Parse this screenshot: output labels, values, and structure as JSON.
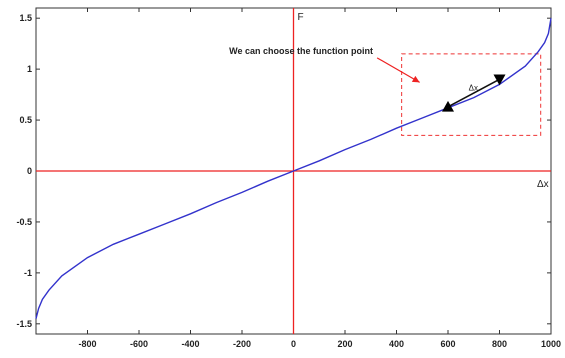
{
  "chart_data": {
    "type": "line",
    "title": "",
    "xlabel": "Δx",
    "ylabel": "F",
    "xlim": [
      -1000,
      1000
    ],
    "ylim": [
      -1.6,
      1.6
    ],
    "x_ticks": [
      -800,
      -600,
      -400,
      -200,
      0,
      200,
      400,
      600,
      800,
      1000
    ],
    "x_tick_labels": [
      "-800",
      "-600",
      "-400",
      "-200",
      "0",
      "200",
      "400",
      "600",
      "800",
      "1000"
    ],
    "y_ticks": [
      -1.5,
      -1,
      -0.5,
      0,
      0.5,
      1,
      1.5
    ],
    "y_tick_labels": [
      "-1.5",
      "-1",
      "-0.5",
      "0",
      "0.5",
      "1",
      "1.5"
    ],
    "series": [
      {
        "color": "#3333cc",
        "x": [
          -1000,
          -990,
          -975,
          -950,
          -900,
          -800,
          -700,
          -600,
          -500,
          -400,
          -300,
          -200,
          -100,
          0,
          100,
          200,
          300,
          400,
          500,
          600,
          700,
          800,
          900,
          950,
          975,
          990,
          1000
        ],
        "y": [
          -1.45,
          -1.35,
          -1.26,
          -1.17,
          -1.03,
          -0.85,
          -0.72,
          -0.62,
          -0.52,
          -0.42,
          -0.31,
          -0.21,
          -0.1,
          0,
          0.1,
          0.21,
          0.31,
          0.42,
          0.52,
          0.62,
          0.72,
          0.85,
          1.03,
          1.17,
          1.26,
          1.35,
          1.5
        ]
      }
    ],
    "markers": [
      {
        "type": "triangle-up",
        "x": 600,
        "y": 0.63
      },
      {
        "type": "triangle-down",
        "x": 800,
        "y": 0.9
      }
    ],
    "annotations": [
      {
        "text": "We can choose the function point",
        "x": -250,
        "y": 1.15
      },
      {
        "text": "Δx",
        "x": 680,
        "y": 0.79
      }
    ],
    "box": {
      "x": [
        420,
        960
      ],
      "y": [
        0.35,
        1.15
      ],
      "color": "#ee3333",
      "style": "dashed"
    },
    "crosshair_color": "#ee2222",
    "grid": false
  }
}
